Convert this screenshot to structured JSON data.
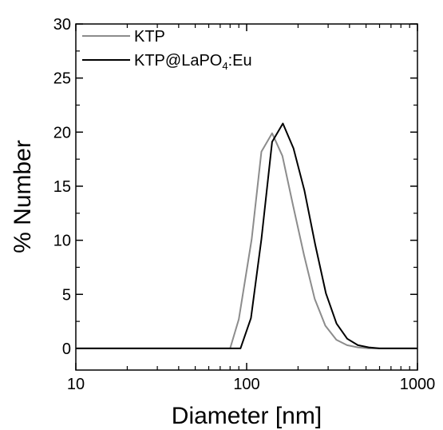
{
  "chart_data": {
    "type": "line",
    "xscale": "log",
    "xlim": [
      10,
      1000
    ],
    "ylim": [
      -2,
      30
    ],
    "xlabel": "Diameter [nm]",
    "ylabel": "% Number",
    "x_ticks": [
      "10",
      "100",
      "1000"
    ],
    "y_ticks": [
      "0",
      "5",
      "10",
      "15",
      "20",
      "25",
      "30"
    ],
    "legend_position": "top-left",
    "legend": {
      "ktp": "KTP",
      "coated_main": "KTP@LaPO",
      "coated_sub": "4",
      "coated_tail": ":Eu"
    },
    "series": [
      {
        "name": "KTP",
        "color": "#8c8c8c",
        "x": [
          10,
          80,
          90,
          107,
          122,
          141,
          162,
          187,
          217,
          250,
          289,
          335,
          387,
          448,
          518,
          1000
        ],
        "y": [
          0,
          0,
          2.7,
          10.1,
          18.2,
          19.9,
          17.8,
          13.2,
          8.6,
          4.6,
          2.1,
          0.8,
          0.3,
          0.1,
          0,
          0
        ]
      },
      {
        "name": "KTP@LaPO4:Eu",
        "color": "#000000",
        "x": [
          10,
          92,
          106,
          122,
          141,
          163,
          188,
          218,
          252,
          291,
          336,
          388,
          448,
          518,
          600,
          1000
        ],
        "y": [
          0,
          0,
          2.8,
          10.1,
          19.1,
          20.8,
          18.5,
          14.6,
          9.6,
          5.1,
          2.3,
          0.9,
          0.3,
          0.1,
          0,
          0
        ]
      }
    ]
  }
}
